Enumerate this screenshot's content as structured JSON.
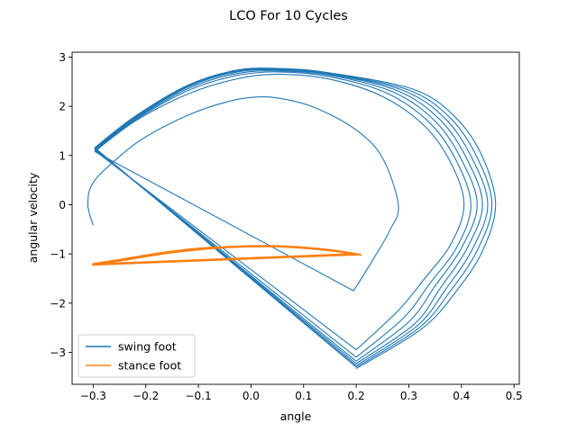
{
  "chart_data": {
    "type": "line",
    "title": "LCO For 10 Cycles",
    "xlabel": "angle",
    "ylabel": "angular velocity",
    "xlim": [
      -0.34,
      0.51
    ],
    "ylim": [
      -3.65,
      3.1
    ],
    "xticks": [
      -0.3,
      -0.2,
      -0.1,
      0.0,
      0.1,
      0.2,
      0.3,
      0.4,
      0.5
    ],
    "xtick_labels": [
      "−0.3",
      "−0.2",
      "−0.1",
      "0.0",
      "0.1",
      "0.2",
      "0.3",
      "0.4",
      "0.5"
    ],
    "yticks": [
      -3,
      -2,
      -1,
      0,
      1,
      2,
      3
    ],
    "ytick_labels": [
      "−3",
      "−2",
      "−1",
      "0",
      "1",
      "2",
      "3"
    ],
    "grid": false,
    "legend_position": "lower-left",
    "series": [
      {
        "name": "swing foot",
        "color": "#1f77b4",
        "segments": [
          [
            [
              -0.3,
              -0.42
            ],
            [
              -0.31,
              0.0
            ],
            [
              -0.3,
              0.45
            ],
            [
              -0.25,
              0.98
            ],
            [
              -0.2,
              1.38
            ],
            [
              -0.12,
              1.82
            ],
            [
              -0.05,
              2.08
            ],
            [
              0.0,
              2.18
            ],
            [
              0.05,
              2.17
            ],
            [
              0.12,
              1.98
            ],
            [
              0.2,
              1.52
            ],
            [
              0.25,
              0.95
            ],
            [
              0.28,
              0.0
            ],
            [
              0.265,
              -0.5
            ],
            [
              0.23,
              -1.15
            ],
            [
              0.195,
              -1.75
            ]
          ],
          [
            [
              0.195,
              -1.75
            ],
            [
              -0.297,
              1.08
            ]
          ],
          [
            [
              -0.297,
              1.08
            ],
            [
              -0.22,
              1.7
            ],
            [
              -0.12,
              2.25
            ],
            [
              -0.03,
              2.55
            ],
            [
              0.05,
              2.65
            ],
            [
              0.15,
              2.55
            ],
            [
              0.25,
              2.2
            ],
            [
              0.33,
              1.6
            ],
            [
              0.38,
              0.85
            ],
            [
              0.405,
              0.0
            ],
            [
              0.38,
              -0.8
            ],
            [
              0.33,
              -1.5
            ],
            [
              0.28,
              -2.15
            ],
            [
              0.2,
              -2.95
            ]
          ],
          [
            [
              0.2,
              -2.95
            ],
            [
              -0.297,
              1.1
            ]
          ],
          [
            [
              -0.297,
              1.1
            ],
            [
              -0.22,
              1.72
            ],
            [
              -0.12,
              2.32
            ],
            [
              -0.03,
              2.62
            ],
            [
              0.05,
              2.7
            ],
            [
              0.15,
              2.6
            ],
            [
              0.26,
              2.26
            ],
            [
              0.34,
              1.66
            ],
            [
              0.39,
              0.9
            ],
            [
              0.418,
              0.0
            ],
            [
              0.392,
              -0.85
            ],
            [
              0.34,
              -1.6
            ],
            [
              0.29,
              -2.3
            ],
            [
              0.2,
              -3.1
            ]
          ],
          [
            [
              0.2,
              -3.1
            ],
            [
              -0.297,
              1.12
            ]
          ],
          [
            [
              -0.297,
              1.12
            ],
            [
              -0.22,
              1.74
            ],
            [
              -0.12,
              2.36
            ],
            [
              -0.03,
              2.66
            ],
            [
              0.05,
              2.72
            ],
            [
              0.15,
              2.63
            ],
            [
              0.27,
              2.29
            ],
            [
              0.35,
              1.7
            ],
            [
              0.4,
              0.92
            ],
            [
              0.43,
              0.0
            ],
            [
              0.4,
              -0.88
            ],
            [
              0.35,
              -1.65
            ],
            [
              0.3,
              -2.38
            ],
            [
              0.2,
              -3.18
            ]
          ],
          [
            [
              0.2,
              -3.18
            ],
            [
              -0.297,
              1.13
            ]
          ],
          [
            [
              -0.297,
              1.13
            ],
            [
              -0.22,
              1.76
            ],
            [
              -0.12,
              2.39
            ],
            [
              -0.03,
              2.69
            ],
            [
              0.05,
              2.74
            ],
            [
              0.15,
              2.65
            ],
            [
              0.28,
              2.31
            ],
            [
              0.36,
              1.72
            ],
            [
              0.41,
              0.94
            ],
            [
              0.44,
              0.0
            ],
            [
              0.41,
              -0.9
            ],
            [
              0.36,
              -1.69
            ],
            [
              0.31,
              -2.43
            ],
            [
              0.2,
              -3.23
            ]
          ],
          [
            [
              0.2,
              -3.23
            ],
            [
              -0.297,
              1.14
            ]
          ],
          [
            [
              -0.297,
              1.14
            ],
            [
              -0.22,
              1.78
            ],
            [
              -0.12,
              2.41
            ],
            [
              -0.03,
              2.71
            ],
            [
              0.05,
              2.75
            ],
            [
              0.15,
              2.66
            ],
            [
              0.29,
              2.32
            ],
            [
              0.37,
              1.74
            ],
            [
              0.42,
              0.95
            ],
            [
              0.45,
              0.0
            ],
            [
              0.42,
              -0.92
            ],
            [
              0.37,
              -1.72
            ],
            [
              0.315,
              -2.47
            ],
            [
              0.2,
              -3.27
            ]
          ],
          [
            [
              0.2,
              -3.27
            ],
            [
              -0.297,
              1.15
            ]
          ],
          [
            [
              -0.297,
              1.15
            ],
            [
              -0.22,
              1.79
            ],
            [
              -0.12,
              2.42
            ],
            [
              -0.03,
              2.72
            ],
            [
              0.05,
              2.76
            ],
            [
              0.15,
              2.67
            ],
            [
              0.3,
              2.33
            ],
            [
              0.38,
              1.75
            ],
            [
              0.43,
              0.96
            ],
            [
              0.458,
              0.0
            ],
            [
              0.43,
              -0.93
            ],
            [
              0.38,
              -1.74
            ],
            [
              0.32,
              -2.5
            ],
            [
              0.2,
              -3.3
            ]
          ],
          [
            [
              0.2,
              -3.3
            ],
            [
              -0.297,
              1.16
            ]
          ],
          [
            [
              -0.297,
              1.16
            ],
            [
              -0.22,
              1.8
            ],
            [
              -0.12,
              2.43
            ],
            [
              -0.03,
              2.73
            ],
            [
              0.05,
              2.77
            ],
            [
              0.15,
              2.68
            ],
            [
              0.31,
              2.34
            ],
            [
              0.39,
              1.76
            ],
            [
              0.44,
              0.97
            ],
            [
              0.465,
              0.0
            ],
            [
              0.44,
              -0.94
            ],
            [
              0.39,
              -1.76
            ],
            [
              0.325,
              -2.52
            ],
            [
              0.2,
              -3.33
            ]
          ]
        ]
      },
      {
        "name": "stance foot",
        "color": "#ff7f0e",
        "segments": [
          [
            [
              -0.3,
              -1.2
            ],
            [
              -0.25,
              -1.12
            ],
            [
              -0.2,
              -1.03
            ],
            [
              -0.15,
              -0.95
            ],
            [
              -0.1,
              -0.89
            ],
            [
              -0.05,
              -0.86
            ],
            [
              0.0,
              -0.84
            ],
            [
              0.05,
              -0.84
            ],
            [
              0.1,
              -0.87
            ],
            [
              0.15,
              -0.92
            ],
            [
              0.2,
              -1.0
            ]
          ],
          [
            [
              0.2,
              -1.0
            ],
            [
              -0.3,
              -1.21
            ]
          ],
          [
            [
              -0.3,
              -1.21
            ],
            [
              -0.25,
              -1.13
            ],
            [
              -0.2,
              -1.04
            ],
            [
              -0.15,
              -0.96
            ],
            [
              -0.1,
              -0.9
            ],
            [
              -0.05,
              -0.86
            ],
            [
              0.0,
              -0.845
            ],
            [
              0.05,
              -0.845
            ],
            [
              0.1,
              -0.875
            ],
            [
              0.15,
              -0.925
            ],
            [
              0.205,
              -1.01
            ]
          ],
          [
            [
              0.205,
              -1.01
            ],
            [
              -0.302,
              -1.22
            ]
          ],
          [
            [
              -0.302,
              -1.22
            ],
            [
              -0.25,
              -1.14
            ],
            [
              -0.2,
              -1.05
            ],
            [
              -0.15,
              -0.97
            ],
            [
              -0.1,
              -0.91
            ],
            [
              -0.05,
              -0.87
            ],
            [
              0.0,
              -0.85
            ],
            [
              0.05,
              -0.85
            ],
            [
              0.1,
              -0.88
            ],
            [
              0.15,
              -0.93
            ],
            [
              0.21,
              -1.02
            ]
          ]
        ]
      }
    ]
  }
}
